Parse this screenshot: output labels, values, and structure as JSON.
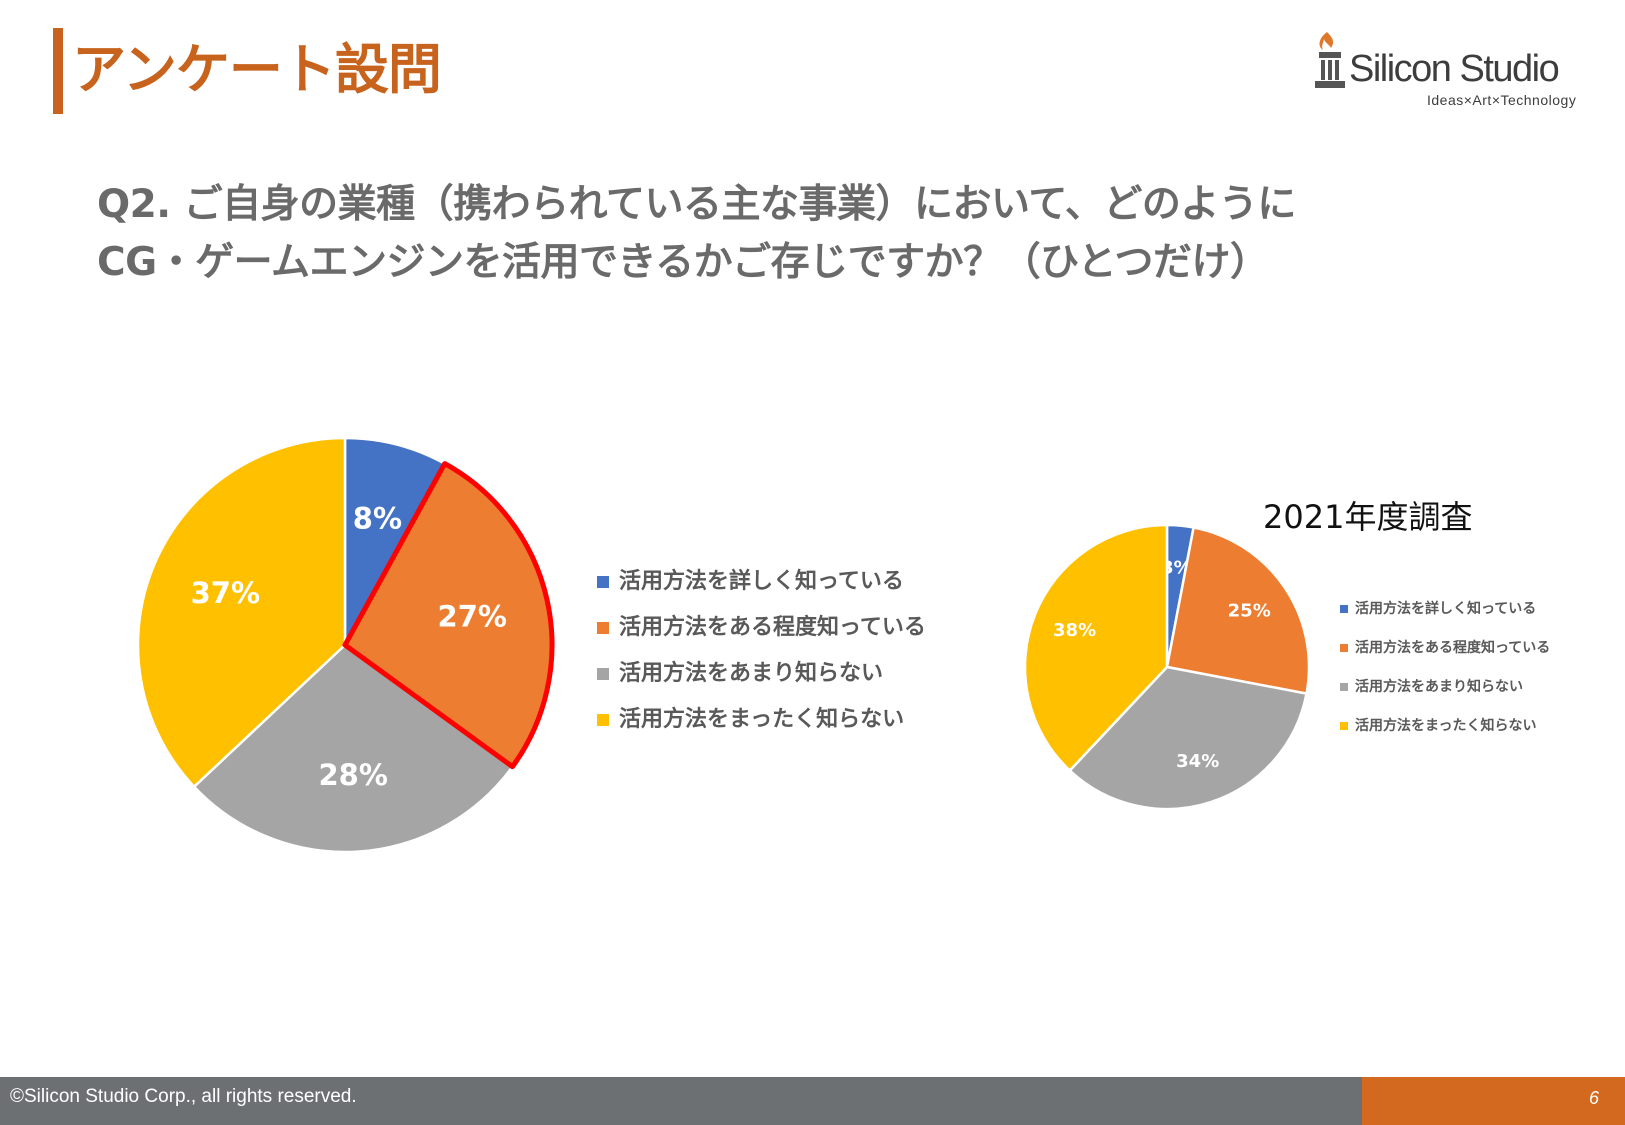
{
  "header": {
    "title": "アンケート設問",
    "accent_color": "#c8631e"
  },
  "logo": {
    "name": "Silicon Studio",
    "tagline": "Ideas×Art×Technology",
    "icon": "pillar-flame-icon"
  },
  "question": {
    "line1": "Q2. ご自身の業種（携わられている主な事業）において、どのように",
    "line2": "CG・ゲームエンジンを活用できるかご存じですか？（ひとつだけ）"
  },
  "chart_data": [
    {
      "type": "pie",
      "title": "",
      "categories": [
        "活用方法を詳しく知っている",
        "活用方法をある程度知っている",
        "活用方法をあまり知らない",
        "活用方法をまったく知らない"
      ],
      "values": [
        8,
        27,
        28,
        37
      ],
      "labels": [
        "8%",
        "27%",
        "28%",
        "37%"
      ],
      "colors": [
        "#4472c4",
        "#ed7d31",
        "#a5a5a5",
        "#ffc000"
      ],
      "highlighted_slice": "活用方法をある程度知っている",
      "highlight_color": "#ff0000",
      "legend": "right"
    },
    {
      "type": "pie",
      "title": "2021年度調査",
      "categories": [
        "活用方法を詳しく知っている",
        "活用方法をある程度知っている",
        "活用方法をあまり知らない",
        "活用方法をまったく知らない"
      ],
      "values": [
        3,
        25,
        34,
        38
      ],
      "labels": [
        "3%",
        "25%",
        "34%",
        "38%"
      ],
      "colors": [
        "#4472c4",
        "#ed7d31",
        "#a5a5a5",
        "#ffc000"
      ],
      "legend": "right"
    }
  ],
  "footer": {
    "copyright": "©Silicon Studio Corp., all rights reserved.",
    "page_number": "6"
  }
}
